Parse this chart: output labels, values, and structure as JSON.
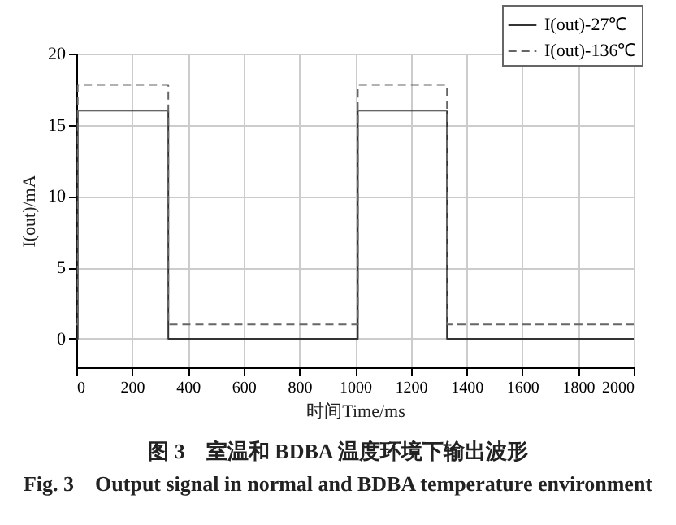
{
  "chart_data": {
    "type": "line",
    "xlabel": "时间Time/ms",
    "ylabel": "I(out)/mA",
    "annotations": [
      "图 3　室温和 BDBA 温度环境下输出波形",
      "Fig. 3　Output signal in normal and BDBA temperature environment"
    ],
    "xlim": [
      0,
      2000
    ],
    "xticks": [
      0,
      200,
      400,
      600,
      800,
      1000,
      1200,
      1400,
      1600,
      1800,
      2000
    ],
    "ylim": [
      -2,
      20
    ],
    "yticks": [
      0,
      5,
      10,
      15,
      20
    ],
    "grid": true,
    "legend": "top right",
    "series": [
      {
        "name": "I(out)-27℃",
        "color": "#333333",
        "line_style": "solid",
        "x": [
          0,
          5,
          5,
          330,
          330,
          1010,
          1010,
          1330,
          1330,
          2000
        ],
        "values": [
          0,
          0,
          16,
          16,
          0,
          0,
          16,
          16,
          0,
          0
        ]
      },
      {
        "name": "I(out)-136℃",
        "color": "#666666",
        "line_style": "dashed",
        "x": [
          0,
          5,
          5,
          330,
          330,
          1010,
          1010,
          1330,
          1330,
          2000
        ],
        "values": [
          1,
          1,
          17.8,
          17.8,
          1,
          1,
          17.8,
          17.8,
          1,
          1
        ]
      }
    ]
  }
}
